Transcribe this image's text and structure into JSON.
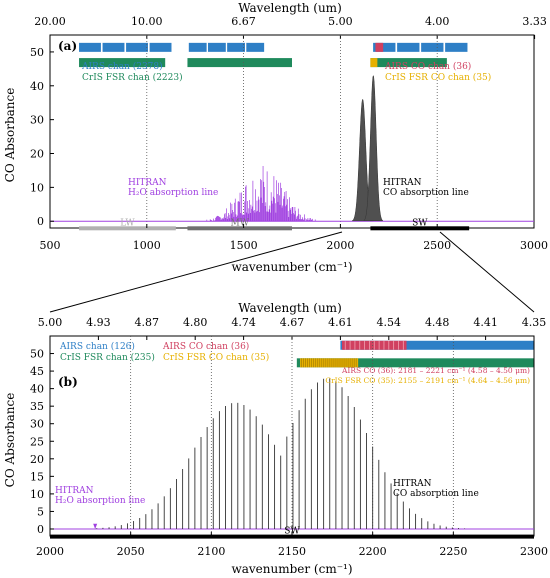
{
  "colors": {
    "airs": "#2e7fc6",
    "cris": "#1f8a5c",
    "airs_co": "#d04060",
    "cris_co": "#e6b000",
    "h2o": "#a040e0",
    "co": "#505050",
    "lw": "#b0b0b0",
    "mw": "#707070",
    "sw": "#000000"
  },
  "chart_data": [
    {
      "panel_label": "(a)",
      "type": "line",
      "xlabel": "wavenumber (cm⁻¹)",
      "ylabel": "CO Absorbance",
      "xlim": [
        500,
        3000
      ],
      "ylim": [
        -2,
        55
      ],
      "x_ticks": [
        "500",
        "1000",
        "1500",
        "2000",
        "2500",
        "3000"
      ],
      "y_ticks": [
        "0",
        "10",
        "20",
        "30",
        "40",
        "50"
      ],
      "top_axis_label": "Wavelength (um)",
      "top_ticks": [
        "20.00",
        "10.00",
        "6.67",
        "5.00",
        "4.00",
        "3.33"
      ],
      "legend": {
        "airs": "AIRS chan (2378)",
        "cris": "CrIS FSR chan (2223)",
        "airs_co": "AIRS CO chan (36)",
        "cris_co": "CrIS FSR CO chan (35)"
      },
      "annotations": {
        "h2o_1": "HITRAN",
        "h2o_2": "H₂O absorption line",
        "co_1": "HITRAN",
        "co_2": "CO absorption line"
      },
      "bands": [
        {
          "name": "LW",
          "range": [
            650,
            1150
          ]
        },
        {
          "name": "MW",
          "range": [
            1210,
            1750
          ]
        },
        {
          "name": "SW",
          "range": [
            2155,
            2665
          ]
        }
      ],
      "airs_channel_ranges": [
        [
          650,
          1136
        ],
        [
          1217,
          1613
        ],
        [
          2169,
          2665
        ]
      ],
      "cris_channel_ranges": [
        [
          650,
          1095
        ],
        [
          1210,
          1750
        ],
        [
          2155,
          2550
        ]
      ],
      "co_band_peaks": {
        "R_branch_center": 2170,
        "R_peak": 43,
        "P_branch_center": 2115,
        "P_peak": 36
      },
      "h2o_band_center": 1595,
      "h2o_peak": 18
    },
    {
      "panel_label": "(b)",
      "type": "line",
      "xlabel": "wavenumber (cm⁻¹)",
      "ylabel": "CO Absorbance",
      "xlim": [
        2000,
        2300
      ],
      "ylim": [
        -2,
        55
      ],
      "x_ticks": [
        "2000",
        "2050",
        "2100",
        "2150",
        "2200",
        "2250",
        "2300"
      ],
      "y_ticks": [
        "0",
        "5",
        "10",
        "15",
        "20",
        "25",
        "30",
        "35",
        "40",
        "45",
        "50"
      ],
      "top_axis_label": "Wavelength (um)",
      "top_ticks": [
        "5.00",
        "4.93",
        "4.87",
        "4.80",
        "4.74",
        "4.67",
        "4.61",
        "4.54",
        "4.48",
        "4.41",
        "4.35"
      ],
      "legend": {
        "airs": "AIRS chan (126)",
        "cris": "CrIS FSR chan (235)",
        "airs_co": "AIRS CO chan (36)",
        "cris_co": "CrIS FSR CO chan (35)"
      },
      "range_notes": {
        "airs": "AIRS CO (36): 2181 – 2221 cm⁻¹ (4.58 – 4.50 μm)",
        "cris": "CrIS FSR CO (35): 2155 – 2191 cm⁻¹ (4.64 – 4.56 μm)"
      },
      "annotations": {
        "h2o_1": "HITRAN",
        "h2o_2": "H₂O absorption line",
        "co_1": "HITRAN",
        "co_2": "CO absorption line"
      },
      "band_label": "SW",
      "co_line_spacing": 3.8,
      "co_R_center": 2172,
      "co_R_peak": 43,
      "co_P_center": 2115,
      "co_P_peak": 36
    }
  ]
}
